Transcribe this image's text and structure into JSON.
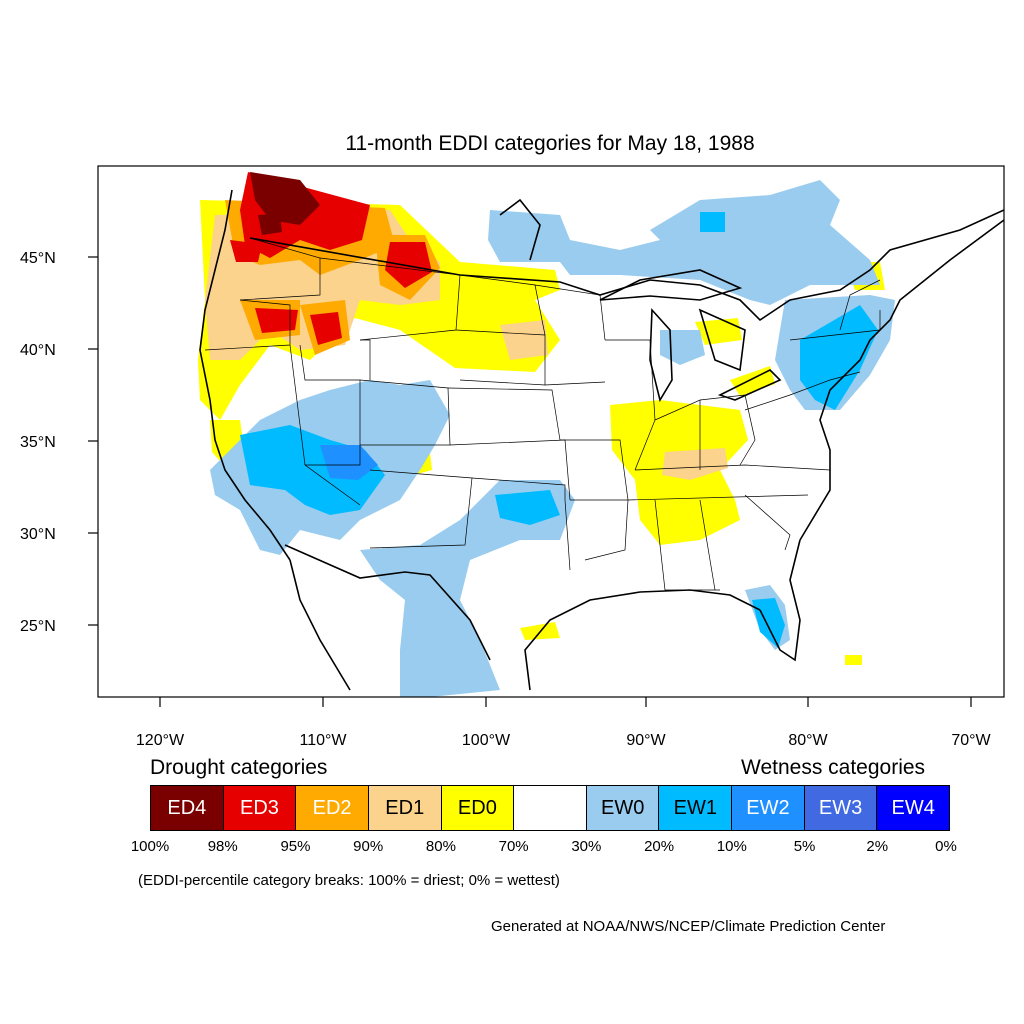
{
  "title": "11-month EDDI categories for May 18, 1988",
  "map": {
    "region": "Contiguous United States",
    "projection": "equirectangular",
    "lon_range": [
      -124.8,
      -68.5
    ],
    "lat_range": [
      21,
      49.5
    ],
    "lat_ticks": [
      "45°N",
      "40°N",
      "35°N",
      "30°N",
      "25°N"
    ],
    "lon_ticks": [
      "120°W",
      "110°W",
      "100°W",
      "90°W",
      "80°W",
      "70°W"
    ],
    "regions": [
      {
        "category": "ED4",
        "area": "northern Idaho / NE Washington / NW Montana"
      },
      {
        "category": "ED3",
        "area": "Pacific Northwest interior, central Montana, SE Oregon, SW Idaho"
      },
      {
        "category": "ED2",
        "area": "Oregon, Idaho, northern Montana"
      },
      {
        "category": "ED1",
        "area": "western Oregon, NW California, South Dakota, Kentucky/Tennessee"
      },
      {
        "category": "ED0",
        "area": "Northern Plains, northern California, Ohio Valley, Southeast"
      },
      {
        "category": "EW0",
        "area": "Southwest, Texas, Great Lakes, Northeast, northern border"
      },
      {
        "category": "EW1",
        "area": "Nevada/Utah/Arizona, Oklahoma, Mid-Atlantic, Florida"
      },
      {
        "category": "EW2",
        "area": "southern Utah / northern Arizona"
      }
    ]
  },
  "legend": {
    "drought_title": "Drought categories",
    "wetness_title": "Wetness categories",
    "categories": [
      {
        "label": "ED4",
        "color": "#7a0000",
        "text_color": "#ffffff"
      },
      {
        "label": "ED3",
        "color": "#e60000",
        "text_color": "#ffffff"
      },
      {
        "label": "ED2",
        "color": "#ffaa00",
        "text_color": "#ffffff"
      },
      {
        "label": "ED1",
        "color": "#fcd38c",
        "text_color": "#000000"
      },
      {
        "label": "ED0",
        "color": "#ffff00",
        "text_color": "#000000"
      },
      {
        "label": "",
        "color": "#ffffff",
        "text_color": "#000000"
      },
      {
        "label": "EW0",
        "color": "#99ccee",
        "text_color": "#000000"
      },
      {
        "label": "EW1",
        "color": "#00bbff",
        "text_color": "#000000"
      },
      {
        "label": "EW2",
        "color": "#1e90ff",
        "text_color": "#ffffff"
      },
      {
        "label": "EW3",
        "color": "#4169e1",
        "text_color": "#ffffff"
      },
      {
        "label": "EW4",
        "color": "#0000ff",
        "text_color": "#ffffff"
      }
    ],
    "percentiles": [
      "100%",
      "98%",
      "95%",
      "90%",
      "80%",
      "70%",
      "30%",
      "20%",
      "10%",
      "5%",
      "2%",
      "0%"
    ]
  },
  "note": "(EDDI-percentile category breaks: 100% = driest; 0% = wettest)",
  "credit": "Generated at NOAA/NWS/NCEP/Climate Prediction Center"
}
